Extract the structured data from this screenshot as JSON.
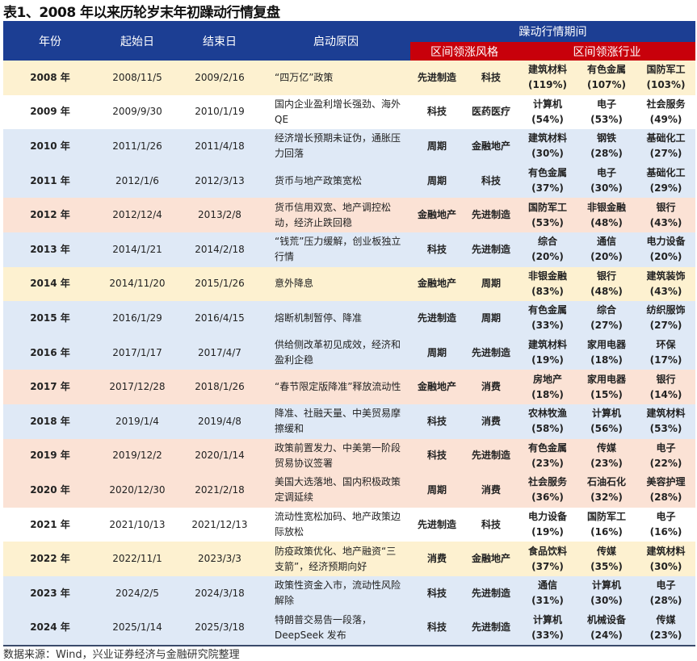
{
  "title": "表1、2008 年以来历轮岁末年初躁动行情复盘",
  "colors": {
    "header_blue": "#1c3e93",
    "header_red": "#c8000b",
    "yellow": "#fdf1d0",
    "blue": "#dfe9f6",
    "salmon": "#fbe2d5",
    "white": "#ffffff"
  },
  "header": {
    "year": "年份",
    "start": "起始日",
    "end": "结束日",
    "reason": "启动原因",
    "period": "躁动行情期间",
    "style": "区间领涨风格",
    "industry": "区间领涨行业"
  },
  "rows": [
    {
      "tone": "Y",
      "year": "2008 年",
      "start": "2008/11/5",
      "end": "2009/2/16",
      "reason": "“四万亿”政策",
      "s1": "先进制造",
      "s2": "科技",
      "i": [
        [
          "建筑材料",
          "(119%)"
        ],
        [
          "有色金属",
          "(107%)"
        ],
        [
          "国防军工",
          "(103%)"
        ]
      ]
    },
    {
      "tone": "W",
      "year": "2009 年",
      "start": "2009/9/30",
      "end": "2010/1/19",
      "reason": "国内企业盈利增长强劲、海外 QE",
      "s1": "科技",
      "s2": "医药医疗",
      "i": [
        [
          "计算机",
          "(54%)"
        ],
        [
          "电子",
          "(53%)"
        ],
        [
          "社会服务",
          "(49%)"
        ]
      ]
    },
    {
      "tone": "B",
      "year": "2010 年",
      "start": "2011/1/26",
      "end": "2011/4/18",
      "reason": "经济增长预期未证伪，通胀压力回落",
      "s1": "周期",
      "s2": "金融地产",
      "i": [
        [
          "建筑材料",
          "(30%)"
        ],
        [
          "钢铁",
          "(28%)"
        ],
        [
          "基础化工",
          "(27%)"
        ]
      ]
    },
    {
      "tone": "B",
      "year": "2011 年",
      "start": "2012/1/6",
      "end": "2012/3/13",
      "reason": "货币与地产政策宽松",
      "s1": "周期",
      "s2": "科技",
      "i": [
        [
          "有色金属",
          "(37%)"
        ],
        [
          "电子",
          "(30%)"
        ],
        [
          "基础化工",
          "(29%)"
        ]
      ]
    },
    {
      "tone": "S",
      "year": "2012 年",
      "start": "2012/12/4",
      "end": "2013/2/8",
      "reason": "货币信用双宽、地产调控松动，经济止跌回稳",
      "s1": "金融地产",
      "s2": "先进制造",
      "i": [
        [
          "国防军工",
          "(53%)"
        ],
        [
          "非银金融",
          "(48%)"
        ],
        [
          "银行",
          "(43%)"
        ]
      ]
    },
    {
      "tone": "B",
      "year": "2013 年",
      "start": "2014/1/21",
      "end": "2014/2/18",
      "reason": "“钱荒”压力缓解，创业板独立行情",
      "s1": "科技",
      "s2": "先进制造",
      "i": [
        [
          "综合",
          "(20%)"
        ],
        [
          "通信",
          "(20%)"
        ],
        [
          "电力设备",
          "(20%)"
        ]
      ]
    },
    {
      "tone": "Y",
      "year": "2014 年",
      "start": "2014/11/20",
      "end": "2015/1/26",
      "reason": "意外降息",
      "s1": "金融地产",
      "s2": "周期",
      "i": [
        [
          "非银金融",
          "(83%)"
        ],
        [
          "银行",
          "(48%)"
        ],
        [
          "建筑装饰",
          "(43%)"
        ]
      ]
    },
    {
      "tone": "B",
      "year": "2015 年",
      "start": "2016/1/29",
      "end": "2016/4/15",
      "reason": "熔断机制暂停、降准",
      "s1": "先进制造",
      "s2": "周期",
      "i": [
        [
          "有色金属",
          "(33%)"
        ],
        [
          "综合",
          "(27%)"
        ],
        [
          "纺织服饰",
          "(27%)"
        ]
      ]
    },
    {
      "tone": "B",
      "year": "2016 年",
      "start": "2017/1/17",
      "end": "2017/4/7",
      "reason": "供给侧改革初见成效，经济和盈利企稳",
      "s1": "周期",
      "s2": "先进制造",
      "i": [
        [
          "建筑材料",
          "(19%)"
        ],
        [
          "家用电器",
          "(18%)"
        ],
        [
          "环保",
          "(17%)"
        ]
      ]
    },
    {
      "tone": "S",
      "year": "2017 年",
      "start": "2017/12/28",
      "end": "2018/1/26",
      "reason": "“春节限定版降准”释放流动性",
      "s1": "金融地产",
      "s2": "消费",
      "i": [
        [
          "房地产",
          "(18%)"
        ],
        [
          "家用电器",
          "(15%)"
        ],
        [
          "银行",
          "(14%)"
        ]
      ]
    },
    {
      "tone": "B",
      "year": "2018 年",
      "start": "2019/1/4",
      "end": "2019/4/8",
      "reason": "降准、社融天量、中美贸易摩擦缓和",
      "s1": "科技",
      "s2": "消费",
      "i": [
        [
          "农林牧渔",
          "(58%)"
        ],
        [
          "计算机",
          "(56%)"
        ],
        [
          "建筑材料",
          "(53%)"
        ]
      ]
    },
    {
      "tone": "S",
      "year": "2019 年",
      "start": "2019/12/2",
      "end": "2020/1/14",
      "reason": "政策前置发力、中美第一阶段贸易协议签署",
      "s1": "科技",
      "s2": "先进制造",
      "i": [
        [
          "有色金属",
          "(23%)"
        ],
        [
          "传媒",
          "(23%)"
        ],
        [
          "电子",
          "(22%)"
        ]
      ]
    },
    {
      "tone": "S",
      "year": "2020 年",
      "start": "2020/12/30",
      "end": "2021/2/18",
      "reason": "美国大选落地、国内积极政策定调延续",
      "s1": "周期",
      "s2": "消费",
      "i": [
        [
          "社会服务",
          "(36%)"
        ],
        [
          "石油石化",
          "(32%)"
        ],
        [
          "美容护理",
          "(28%)"
        ]
      ]
    },
    {
      "tone": "W",
      "year": "2021 年",
      "start": "2021/10/13",
      "end": "2021/12/13",
      "reason": "流动性宽松加码、地产政策边际放松",
      "s1": "先进制造",
      "s2": "科技",
      "i": [
        [
          "电力设备",
          "(19%)"
        ],
        [
          "国防军工",
          "(16%)"
        ],
        [
          "电子",
          "(16%)"
        ]
      ]
    },
    {
      "tone": "Y",
      "year": "2022 年",
      "start": "2022/11/1",
      "end": "2023/3/3",
      "reason": "防疫政策优化、地产融资“三支箭”，经济预期向好",
      "s1": "消费",
      "s2": "金融地产",
      "i": [
        [
          "食品饮料",
          "(37%)"
        ],
        [
          "传媒",
          "(35%)"
        ],
        [
          "建筑材料",
          "(30%)"
        ]
      ]
    },
    {
      "tone": "B",
      "year": "2023 年",
      "start": "2024/2/5",
      "end": "2024/3/18",
      "reason": "政策性资金入市，流动性风险解除",
      "s1": "科技",
      "s2": "先进制造",
      "i": [
        [
          "通信",
          "(31%)"
        ],
        [
          "计算机",
          "(30%)"
        ],
        [
          "电子",
          "(28%)"
        ]
      ]
    },
    {
      "tone": "B",
      "year": "2024 年",
      "start": "2025/1/14",
      "end": "2025/3/18",
      "reason": "特朗普交易告一段落，DeepSeek 发布",
      "s1": "科技",
      "s2": "先进制造",
      "i": [
        [
          "计算机",
          "(33%)"
        ],
        [
          "机械设备",
          "(24%)"
        ],
        [
          "传媒",
          "(23%)"
        ]
      ]
    }
  ],
  "source": "数据来源：Wind，兴业证券经济与金融研究院整理"
}
